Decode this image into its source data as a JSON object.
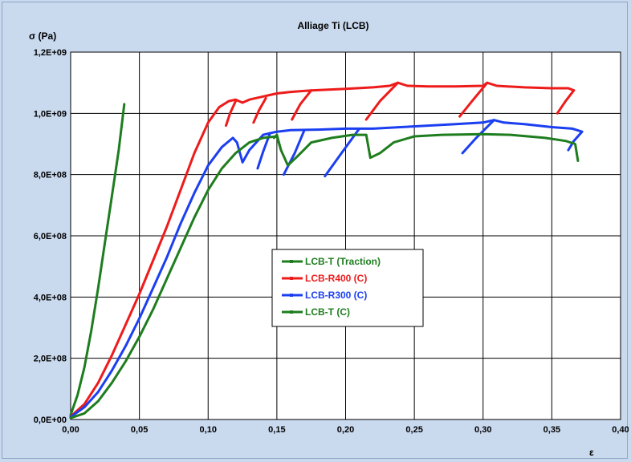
{
  "chart_data": {
    "type": "line",
    "title": "Alliage Ti (LCB)",
    "xlabel": "ε",
    "ylabel": "σ (Pa)",
    "xlim": [
      0,
      0.4
    ],
    "ylim": [
      0,
      1200000000.0
    ],
    "xticks": [
      0,
      0.05,
      0.1,
      0.15,
      0.2,
      0.25,
      0.3,
      0.35,
      0.4
    ],
    "xtick_labels": [
      "0,00",
      "0,05",
      "0,10",
      "0,15",
      "0,20",
      "0,25",
      "0,30",
      "0,35",
      "0,40"
    ],
    "yticks": [
      0,
      200000000.0,
      400000000.0,
      600000000.0,
      800000000.0,
      1000000000.0,
      1200000000.0
    ],
    "ytick_labels": [
      "0,0E+00",
      "2,0E+08",
      "4,0E+08",
      "6,0E+08",
      "8,0E+08",
      "1,0E+09",
      "1,2E+09"
    ],
    "grid": true,
    "legend": "center",
    "series": [
      {
        "name": "LCB-T (Traction)",
        "color": "#1e7d1e",
        "segments": [
          [
            [
              0.0,
              15000000.0
            ],
            [
              0.005,
              80000000.0
            ],
            [
              0.01,
              170000000.0
            ],
            [
              0.015,
              290000000.0
            ],
            [
              0.02,
              430000000.0
            ],
            [
              0.025,
              580000000.0
            ],
            [
              0.03,
              730000000.0
            ],
            [
              0.035,
              880000000.0
            ],
            [
              0.039,
              1030000000.0
            ]
          ]
        ]
      },
      {
        "name": "LCB-R400 (C)",
        "color": "#ee1b1b",
        "segments": [
          [
            [
              0.0,
              10000000.0
            ],
            [
              0.01,
              50000000.0
            ],
            [
              0.02,
              120000000.0
            ],
            [
              0.03,
              210000000.0
            ],
            [
              0.04,
              310000000.0
            ],
            [
              0.05,
              410000000.0
            ],
            [
              0.06,
              520000000.0
            ],
            [
              0.07,
              630000000.0
            ],
            [
              0.08,
              750000000.0
            ],
            [
              0.09,
              870000000.0
            ],
            [
              0.1,
              970000000.0
            ],
            [
              0.108,
              1020000000.0
            ],
            [
              0.115,
              1040000000.0
            ],
            [
              0.12,
              1045000000.0
            ],
            [
              0.125,
              1035000000.0
            ],
            [
              0.13,
              1045000000.0
            ],
            [
              0.14,
              1055000000.0
            ],
            [
              0.145,
              1060000000.0
            ],
            [
              0.15,
              1065000000.0
            ],
            [
              0.16,
              1070000000.0
            ],
            [
              0.175,
              1075000000.0
            ],
            [
              0.2,
              1080000000.0
            ],
            [
              0.22,
              1085000000.0
            ],
            [
              0.232,
              1090000000.0
            ],
            [
              0.238,
              1100000000.0
            ],
            [
              0.245,
              1090000000.0
            ],
            [
              0.26,
              1088000000.0
            ],
            [
              0.28,
              1088000000.0
            ],
            [
              0.3,
              1090000000.0
            ],
            [
              0.303,
              1100000000.0
            ],
            [
              0.31,
              1090000000.0
            ],
            [
              0.33,
              1085000000.0
            ],
            [
              0.35,
              1082000000.0
            ],
            [
              0.362,
              1082000000.0
            ],
            [
              0.366,
              1075000000.0
            ]
          ],
          [
            [
              0.113,
              960000000.0
            ],
            [
              0.116,
              1000000000.0
            ],
            [
              0.12,
              1040000000.0
            ]
          ],
          [
            [
              0.133,
              970000000.0
            ],
            [
              0.137,
              1010000000.0
            ],
            [
              0.142,
              1050000000.0
            ]
          ],
          [
            [
              0.161,
              980000000.0
            ],
            [
              0.167,
              1030000000.0
            ],
            [
              0.175,
              1075000000.0
            ]
          ],
          [
            [
              0.215,
              980000000.0
            ],
            [
              0.225,
              1040000000.0
            ],
            [
              0.238,
              1100000000.0
            ]
          ],
          [
            [
              0.283,
              990000000.0
            ],
            [
              0.292,
              1040000000.0
            ],
            [
              0.303,
              1100000000.0
            ]
          ],
          [
            [
              0.354,
              1000000000.0
            ],
            [
              0.36,
              1040000000.0
            ],
            [
              0.366,
              1075000000.0
            ]
          ]
        ]
      },
      {
        "name": "LCB-R300 (C)",
        "color": "#1b3ff0",
        "segments": [
          [
            [
              0.0,
              8000000.0
            ],
            [
              0.01,
              40000000.0
            ],
            [
              0.02,
              90000000.0
            ],
            [
              0.03,
              160000000.0
            ],
            [
              0.04,
              240000000.0
            ],
            [
              0.05,
              330000000.0
            ],
            [
              0.06,
              430000000.0
            ],
            [
              0.07,
              530000000.0
            ],
            [
              0.08,
              640000000.0
            ],
            [
              0.09,
              740000000.0
            ],
            [
              0.1,
              830000000.0
            ],
            [
              0.11,
              890000000.0
            ],
            [
              0.118,
              920000000.0
            ],
            [
              0.121,
              905000000.0
            ],
            [
              0.125,
              840000000.0
            ],
            [
              0.13,
              880000000.0
            ],
            [
              0.14,
              930000000.0
            ],
            [
              0.145,
              935000000.0
            ],
            [
              0.15,
              940000000.0
            ],
            [
              0.16,
              945000000.0
            ],
            [
              0.18,
              947000000.0
            ],
            [
              0.2,
              950000000.0
            ],
            [
              0.21,
              950000000.0
            ],
            [
              0.22,
              950000000.0
            ],
            [
              0.24,
              955000000.0
            ],
            [
              0.26,
              960000000.0
            ],
            [
              0.28,
              965000000.0
            ],
            [
              0.3,
              970000000.0
            ],
            [
              0.308,
              978000000.0
            ],
            [
              0.315,
              970000000.0
            ],
            [
              0.33,
              965000000.0
            ],
            [
              0.35,
              955000000.0
            ],
            [
              0.365,
              950000000.0
            ],
            [
              0.372,
              940000000.0
            ]
          ],
          [
            [
              0.136,
              820000000.0
            ],
            [
              0.14,
              875000000.0
            ],
            [
              0.145,
              935000000.0
            ]
          ],
          [
            [
              0.155,
              800000000.0
            ],
            [
              0.163,
              870000000.0
            ],
            [
              0.17,
              945000000.0
            ]
          ],
          [
            [
              0.185,
              795000000.0
            ],
            [
              0.197,
              870000000.0
            ],
            [
              0.21,
              950000000.0
            ]
          ],
          [
            [
              0.285,
              870000000.0
            ],
            [
              0.295,
              920000000.0
            ],
            [
              0.308,
              978000000.0
            ]
          ],
          [
            [
              0.362,
              880000000.0
            ],
            [
              0.366,
              910000000.0
            ],
            [
              0.372,
              940000000.0
            ]
          ]
        ]
      },
      {
        "name": "LCB-T (C)",
        "color": "#1e7d1e",
        "segments": [
          [
            [
              0.0,
              5000000.0
            ],
            [
              0.01,
              20000000.0
            ],
            [
              0.02,
              60000000.0
            ],
            [
              0.03,
              120000000.0
            ],
            [
              0.04,
              190000000.0
            ],
            [
              0.05,
              270000000.0
            ],
            [
              0.06,
              360000000.0
            ],
            [
              0.07,
              460000000.0
            ],
            [
              0.08,
              560000000.0
            ],
            [
              0.09,
              660000000.0
            ],
            [
              0.1,
              750000000.0
            ],
            [
              0.11,
              820000000.0
            ],
            [
              0.12,
              870000000.0
            ],
            [
              0.13,
              905000000.0
            ],
            [
              0.14,
              920000000.0
            ],
            [
              0.15,
              925000000.0
            ],
            [
              0.153,
              880000000.0
            ],
            [
              0.158,
              830000000.0
            ],
            [
              0.165,
              860000000.0
            ],
            [
              0.175,
              905000000.0
            ],
            [
              0.19,
              920000000.0
            ],
            [
              0.205,
              930000000.0
            ],
            [
              0.215,
              930000000.0
            ],
            [
              0.218,
              855000000.0
            ],
            [
              0.225,
              870000000.0
            ],
            [
              0.235,
              905000000.0
            ],
            [
              0.25,
              925000000.0
            ],
            [
              0.27,
              930000000.0
            ],
            [
              0.3,
              932000000.0
            ],
            [
              0.32,
              930000000.0
            ],
            [
              0.345,
              920000000.0
            ],
            [
              0.36,
              910000000.0
            ],
            [
              0.367,
              900000000.0
            ],
            [
              0.369,
              845000000.0
            ]
          ],
          [
            [
              0.148,
              920000000.0
            ],
            [
              0.15,
              930000000.0
            ],
            [
              0.153,
              880000000.0
            ]
          ]
        ]
      }
    ]
  }
}
